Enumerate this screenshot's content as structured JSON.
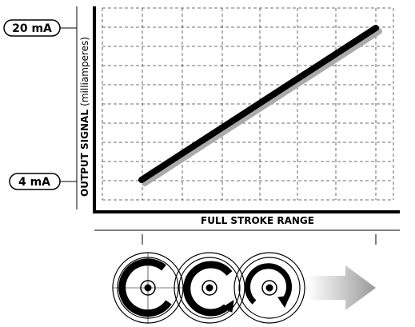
{
  "labels": {
    "top_signal": "20 mA",
    "bottom_signal": "4 mA",
    "y_axis": "OUTPUT SIGNAL",
    "y_axis_unit": "(milliamperes)",
    "x_axis": "FULL STROKE RANGE"
  }
}
